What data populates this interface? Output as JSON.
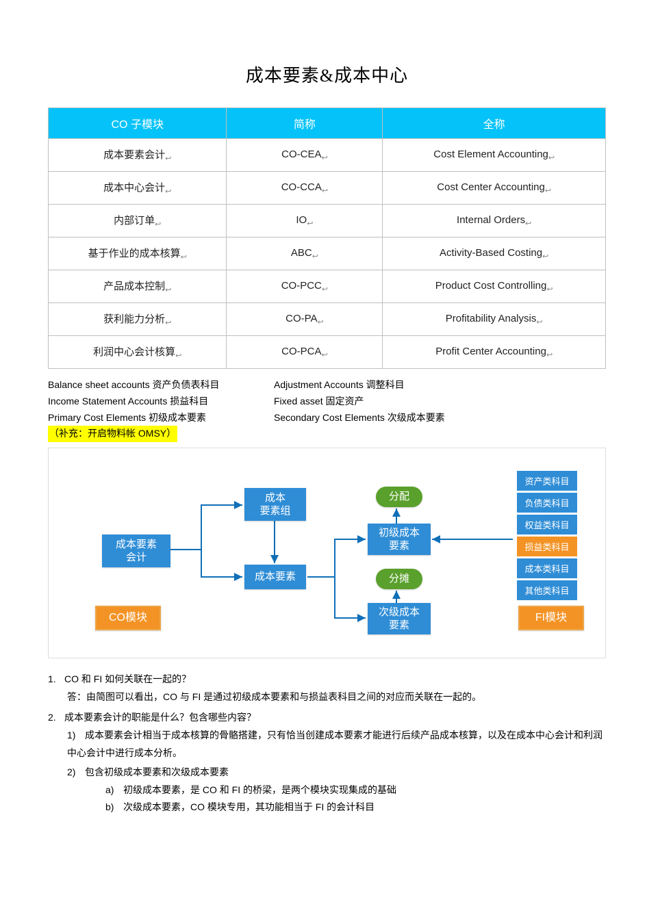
{
  "title": "成本要素&成本中心",
  "table": {
    "headers": [
      "CO 子模块",
      "简称",
      "全称"
    ],
    "header_bg": "#05c3f9",
    "header_color": "#ffffff",
    "border_color": "#bfbfbf",
    "rows": [
      [
        "成本要素会计",
        "CO-CEA",
        "Cost Element Accounting"
      ],
      [
        "成本中心会计",
        "CO-CCA",
        "Cost Center Accounting"
      ],
      [
        "内部订单",
        "IO",
        "Internal Orders"
      ],
      [
        "基于作业的成本核算",
        "ABC",
        "Activity-Based Costing"
      ],
      [
        "产品成本控制",
        "CO-PCC",
        "Product Cost Controlling"
      ],
      [
        "获利能力分析",
        "CO-PA",
        "Profitability Analysis"
      ],
      [
        "利润中心会计核算",
        "CO-PCA",
        "Profit Center Accounting"
      ]
    ]
  },
  "defs": {
    "rows": [
      {
        "left": "Balance sheet accounts 资产负债表科目",
        "right": "Adjustment Accounts 调整科目"
      },
      {
        "left": "Income Statement Accounts 损益科目",
        "right": "Fixed asset 固定资产"
      },
      {
        "left": "Primary Cost Elements 初级成本要素",
        "right": "Secondary Cost Elements 次级成本要素"
      }
    ],
    "highlight": "（补充：开启物料帐 OMSY）",
    "highlight_bg": "#ffff00"
  },
  "diagram": {
    "colors": {
      "blue": "#2f8dd6",
      "green": "#5aa02c",
      "orange": "#f39325",
      "line": "#0f6fb7"
    },
    "nodes": {
      "root": {
        "label": "成本要素\n会计"
      },
      "group": {
        "label": "成本\n要素组"
      },
      "elem": {
        "label": "成本要素"
      },
      "primary": {
        "label": "初级成本\n要素"
      },
      "secondary": {
        "label": "次级成本\n要素"
      },
      "alloc": {
        "label": "分配"
      },
      "assess": {
        "label": "分摊"
      },
      "co_mod": {
        "label": "CO模块"
      },
      "fi_mod": {
        "label": "FI模块"
      }
    },
    "side_items": [
      {
        "label": "资产类科目",
        "highlight": false
      },
      {
        "label": "负债类科目",
        "highlight": false
      },
      {
        "label": "权益类科目",
        "highlight": false
      },
      {
        "label": "损益类科目",
        "highlight": true
      },
      {
        "label": "成本类科目",
        "highlight": false
      },
      {
        "label": "其他类科目",
        "highlight": false
      }
    ]
  },
  "qa": {
    "q1_num": "1.",
    "q1": "CO 和 FI 如何关联在一起的？",
    "a1_prefix": "答：",
    "a1": "由简图可以看出，CO 与 FI 是通过初级成本要素和与损益表科目之间的对应而关联在一起的。",
    "q2_num": "2.",
    "q2": "成本要素会计的职能是什么？包含哪些内容？",
    "s1_num": "1)",
    "s1": "成本要素会计相当于成本核算的骨骼搭建，只有恰当创建成本要素才能进行后续产品成本核算，以及在成本中心会计和利润中心会计中进行成本分析。",
    "s2_num": "2)",
    "s2": "包含初级成本要素和次级成本要素",
    "la": "a)",
    "la_text": "初级成本要素，是 CO 和 FI 的桥梁，是两个模块实现集成的基础",
    "lb": "b)",
    "lb_text": "次级成本要素，CO 模块专用，其功能相当于 FI 的会计科目"
  }
}
